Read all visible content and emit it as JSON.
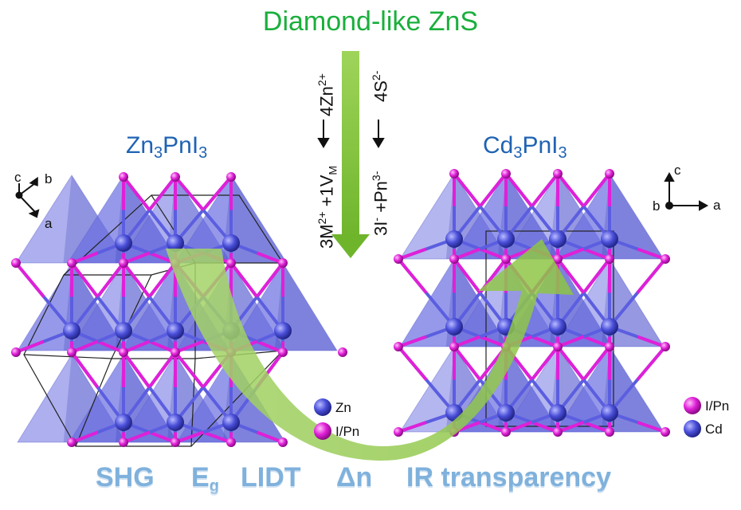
{
  "title": "Diamond-like ZnS",
  "left_structure": {
    "base": "Zn",
    "sub1": "3",
    "mid": "PnI",
    "sub2": "3"
  },
  "right_structure": {
    "base": "Cd",
    "sub1": "3",
    "mid": "PnI",
    "sub2": "3"
  },
  "substitution_left": {
    "top": "4Zn",
    "top_sup": "2+",
    "bottom_a": "3M",
    "bottom_a_sup": "2+",
    "bottom_b": " +1V",
    "bottom_b_sub": "M"
  },
  "substitution_right": {
    "top": "4S",
    "top_sup": "2-",
    "bottom_a": "3I",
    "bottom_a_sup": "-",
    "bottom_b": " +Pn",
    "bottom_b_sup": "3-"
  },
  "axes_left": {
    "c": "c",
    "b": "b",
    "a": "a"
  },
  "axes_right": {
    "c": "c",
    "b": "b",
    "a": "a"
  },
  "legend_left": [
    {
      "label": "Zn",
      "color": "#4a4fd9"
    },
    {
      "label": "I/Pn",
      "color": "#e020d8"
    }
  ],
  "legend_right": [
    {
      "label": "I/Pn",
      "color": "#e020d8"
    },
    {
      "label": "Cd",
      "color": "#4a4fd9"
    }
  ],
  "properties": {
    "shg": "SHG",
    "eg_base": "E",
    "eg_sub": "g",
    "lidt": "LIDT",
    "dn": "Δn",
    "ir": "IR transparency"
  },
  "colors": {
    "title": "#1aaf3c",
    "structure_label": "#1f63b4",
    "tetrahedron": "#6a6ee0",
    "cation": "#4a4fd9",
    "anion": "#e020d8",
    "arrow": "#8bc34a",
    "properties": "#7fb1dc"
  }
}
